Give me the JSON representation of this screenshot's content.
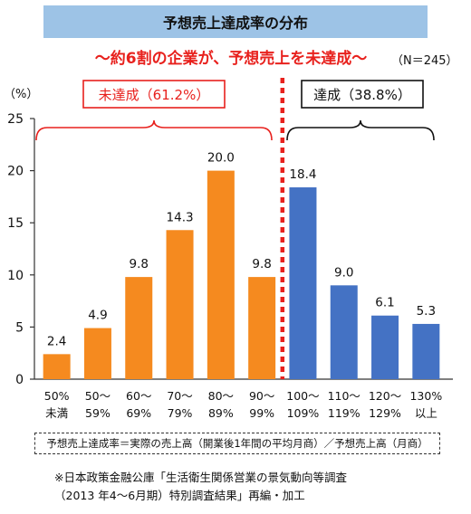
{
  "header": {
    "title": "予想売上達成率の分布",
    "subtitle": "～約6割の企業が、予想売上を未達成～",
    "sample_size": "（N＝245）"
  },
  "chart_data": {
    "type": "bar",
    "ylabel": "（%）",
    "ylim": [
      0,
      25
    ],
    "yticks": [
      0,
      5,
      10,
      15,
      20,
      25
    ],
    "grid": false,
    "categories": [
      {
        "line1": "50%",
        "line2": "未満"
      },
      {
        "line1": "50～",
        "line2": "59%"
      },
      {
        "line1": "60～",
        "line2": "69%"
      },
      {
        "line1": "70～",
        "line2": "79%"
      },
      {
        "line1": "80～",
        "line2": "89%"
      },
      {
        "line1": "90～",
        "line2": "99%"
      },
      {
        "line1": "100～",
        "line2": "109%"
      },
      {
        "line1": "110～",
        "line2": "119%"
      },
      {
        "line1": "120～",
        "line2": "129%"
      },
      {
        "line1": "130%",
        "line2": "以上"
      }
    ],
    "values": [
      2.4,
      4.9,
      9.8,
      14.3,
      20.0,
      9.8,
      18.4,
      9.0,
      6.1,
      5.3
    ],
    "value_labels": [
      "2.4",
      "4.9",
      "9.8",
      "14.3",
      "20.0",
      "9.8",
      "18.4",
      "9.0",
      "6.1",
      "5.3"
    ],
    "groups": [
      {
        "label": "未達成（61.2%）",
        "color": "#f58a1f",
        "border": "#e8211d",
        "text_color": "#e8211d"
      },
      {
        "label": "達成（38.8%）",
        "color": "#4472c4",
        "border": "#111111",
        "text_color": "#111111"
      }
    ],
    "divider_color": "#e8211d"
  },
  "footer": {
    "formula": "予想売上達成率＝実際の売上高（開業後1年間の平均月商）／予想売上高（月商）",
    "source_line1": "※日本政策金融公庫「生活衛生関係営業の景気動向等調査",
    "source_line2": "（2013 年4～6月期）特別調査結果」再編・加工"
  }
}
